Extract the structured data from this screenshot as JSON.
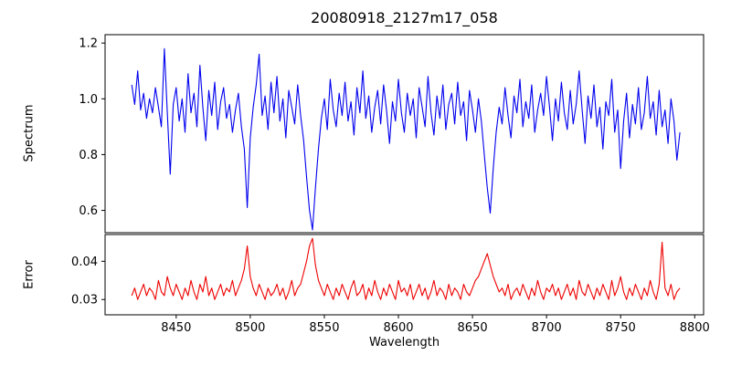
{
  "figure": {
    "background": "#ffffff",
    "axes_color": "#000000"
  },
  "chart_data": [
    {
      "type": "line",
      "title": "20080918_2127m17_058",
      "ylabel": "Spectrum",
      "legend": null,
      "grid": false,
      "line_color": "#0000ee",
      "xlim": [
        8402,
        8806
      ],
      "ylim": [
        0.52,
        1.23
      ],
      "yticks": [
        0.6,
        0.8,
        1.0,
        1.2
      ],
      "ytick_labels": [
        "0.6",
        "0.8",
        "1.0",
        "1.2"
      ],
      "x_start": 8420,
      "x_step": 2,
      "values": [
        1.05,
        0.98,
        1.1,
        0.96,
        1.02,
        0.93,
        1.0,
        0.95,
        1.04,
        0.97,
        0.9,
        1.18,
        0.95,
        0.73,
        0.98,
        1.04,
        0.92,
        1.0,
        0.88,
        1.09,
        0.95,
        1.02,
        0.9,
        1.12,
        0.97,
        0.85,
        1.03,
        0.94,
        1.06,
        0.89,
        0.99,
        1.04,
        0.93,
        0.98,
        0.88,
        0.96,
        1.02,
        0.9,
        0.82,
        0.61,
        0.86,
        0.97,
        1.05,
        1.16,
        0.94,
        1.01,
        0.89,
        1.06,
        0.95,
        1.08,
        0.92,
        1.0,
        0.86,
        1.03,
        0.97,
        0.91,
        1.05,
        0.94,
        0.85,
        0.72,
        0.6,
        0.53,
        0.68,
        0.82,
        0.93,
        1.0,
        0.89,
        1.07,
        0.96,
        0.9,
        1.02,
        0.94,
        1.06,
        0.92,
        0.99,
        0.87,
        1.04,
        0.95,
        1.1,
        0.93,
        1.01,
        0.88,
        0.97,
        1.03,
        0.91,
        1.05,
        0.96,
        0.84,
        0.99,
        0.92,
        1.07,
        0.95,
        0.88,
        1.02,
        0.94,
        1.0,
        0.86,
        1.04,
        0.97,
        0.9,
        1.08,
        0.95,
        0.87,
        1.01,
        0.93,
        1.05,
        0.89,
        0.98,
        1.02,
        0.91,
        1.06,
        0.94,
        0.99,
        0.85,
        1.03,
        0.96,
        0.88,
        1.0,
        0.92,
        0.8,
        0.68,
        0.59,
        0.75,
        0.88,
        0.97,
        0.91,
        1.04,
        0.94,
        0.86,
        1.01,
        0.95,
        1.07,
        0.9,
        0.99,
        0.93,
        1.05,
        0.88,
        0.96,
        1.02,
        0.94,
        1.08,
        0.97,
        0.85,
        1.0,
        0.92,
        1.06,
        0.95,
        0.89,
        1.03,
        0.91,
        0.98,
        1.1,
        0.96,
        0.84,
        1.01,
        0.93,
        1.05,
        0.9,
        0.97,
        0.82,
        0.99,
        0.94,
        1.07,
        0.88,
        0.96,
        0.75,
        0.92,
        1.02,
        0.86,
        0.98,
        0.91,
        1.04,
        0.89,
        0.95,
        1.08,
        0.93,
        0.99,
        0.87,
        1.03,
        0.9,
        0.96,
        0.84,
        1.0,
        0.92,
        0.78,
        0.88
      ],
      "absorption_features_x": [
        8498,
        8542,
        8662
      ]
    },
    {
      "type": "line",
      "ylabel": "Error",
      "xlabel": "Wavelength",
      "legend": null,
      "grid": false,
      "line_color": "#ee0000",
      "xlim": [
        8402,
        8806
      ],
      "ylim": [
        0.026,
        0.047
      ],
      "yticks": [
        0.03,
        0.04
      ],
      "ytick_labels": [
        "0.03",
        "0.04"
      ],
      "xticks": [
        8450,
        8500,
        8550,
        8600,
        8650,
        8700,
        8750,
        8800
      ],
      "xtick_labels": [
        "8450",
        "8500",
        "8550",
        "8600",
        "8650",
        "8700",
        "8750",
        "8800"
      ],
      "x_start": 8420,
      "x_step": 2,
      "values": [
        0.031,
        0.033,
        0.03,
        0.032,
        0.034,
        0.031,
        0.033,
        0.032,
        0.03,
        0.035,
        0.032,
        0.031,
        0.036,
        0.033,
        0.031,
        0.034,
        0.032,
        0.03,
        0.033,
        0.031,
        0.035,
        0.032,
        0.03,
        0.034,
        0.032,
        0.036,
        0.031,
        0.033,
        0.03,
        0.032,
        0.034,
        0.031,
        0.033,
        0.032,
        0.035,
        0.031,
        0.033,
        0.035,
        0.038,
        0.044,
        0.036,
        0.033,
        0.031,
        0.034,
        0.032,
        0.03,
        0.033,
        0.031,
        0.032,
        0.034,
        0.031,
        0.033,
        0.03,
        0.032,
        0.035,
        0.031,
        0.033,
        0.034,
        0.037,
        0.04,
        0.044,
        0.046,
        0.039,
        0.035,
        0.033,
        0.031,
        0.034,
        0.032,
        0.03,
        0.033,
        0.031,
        0.034,
        0.032,
        0.03,
        0.033,
        0.035,
        0.031,
        0.032,
        0.034,
        0.03,
        0.033,
        0.031,
        0.035,
        0.032,
        0.03,
        0.033,
        0.031,
        0.034,
        0.032,
        0.03,
        0.035,
        0.032,
        0.033,
        0.031,
        0.034,
        0.03,
        0.032,
        0.034,
        0.031,
        0.033,
        0.03,
        0.032,
        0.035,
        0.031,
        0.033,
        0.032,
        0.03,
        0.034,
        0.031,
        0.033,
        0.032,
        0.03,
        0.034,
        0.032,
        0.031,
        0.033,
        0.035,
        0.036,
        0.038,
        0.04,
        0.042,
        0.039,
        0.036,
        0.034,
        0.032,
        0.033,
        0.031,
        0.034,
        0.03,
        0.032,
        0.033,
        0.031,
        0.034,
        0.032,
        0.03,
        0.033,
        0.031,
        0.035,
        0.032,
        0.03,
        0.033,
        0.032,
        0.034,
        0.031,
        0.033,
        0.03,
        0.032,
        0.034,
        0.031,
        0.033,
        0.03,
        0.035,
        0.032,
        0.031,
        0.034,
        0.032,
        0.03,
        0.033,
        0.031,
        0.034,
        0.032,
        0.03,
        0.035,
        0.031,
        0.033,
        0.036,
        0.032,
        0.03,
        0.033,
        0.031,
        0.034,
        0.032,
        0.03,
        0.033,
        0.031,
        0.035,
        0.032,
        0.03,
        0.034,
        0.045,
        0.033,
        0.031,
        0.034,
        0.03,
        0.032,
        0.033
      ]
    }
  ]
}
